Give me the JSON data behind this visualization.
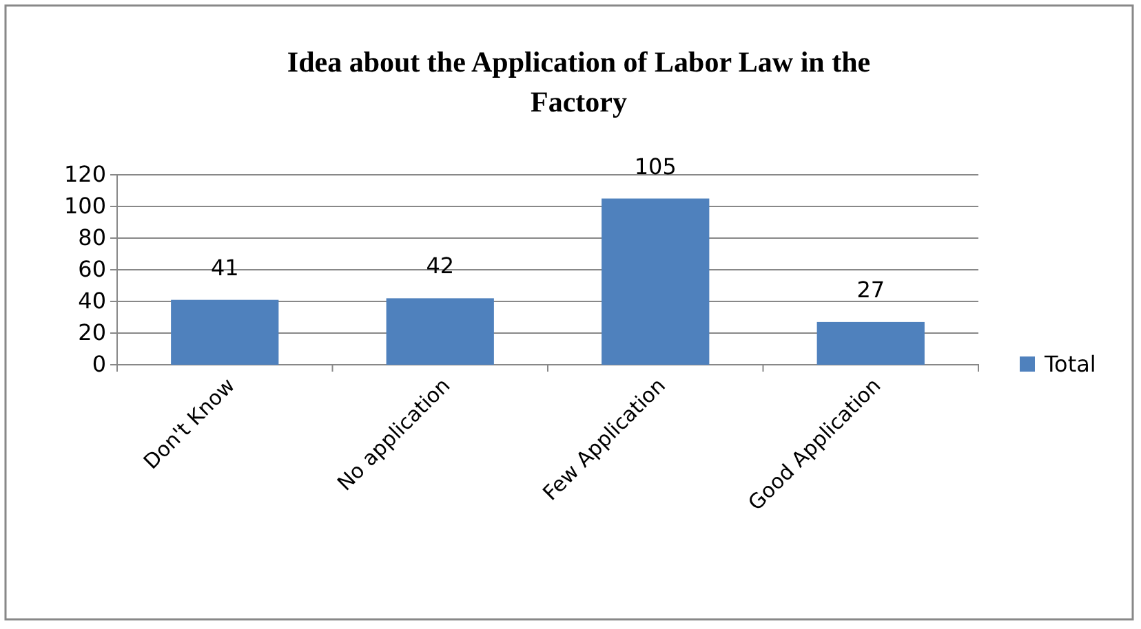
{
  "chart_data": {
    "type": "bar",
    "title": "Idea about the Application of Labor Law in the Factory",
    "categories": [
      "Don't Know",
      "No application",
      "Few Application",
      "Good Application"
    ],
    "series": [
      {
        "name": "Total",
        "color": "#4f81bd",
        "values": [
          41,
          42,
          105,
          27
        ]
      }
    ],
    "ylim": [
      0,
      120
    ],
    "yticks": [
      0,
      20,
      40,
      60,
      80,
      100,
      120
    ],
    "grid": "y",
    "legend": "right",
    "data_labels": true
  }
}
